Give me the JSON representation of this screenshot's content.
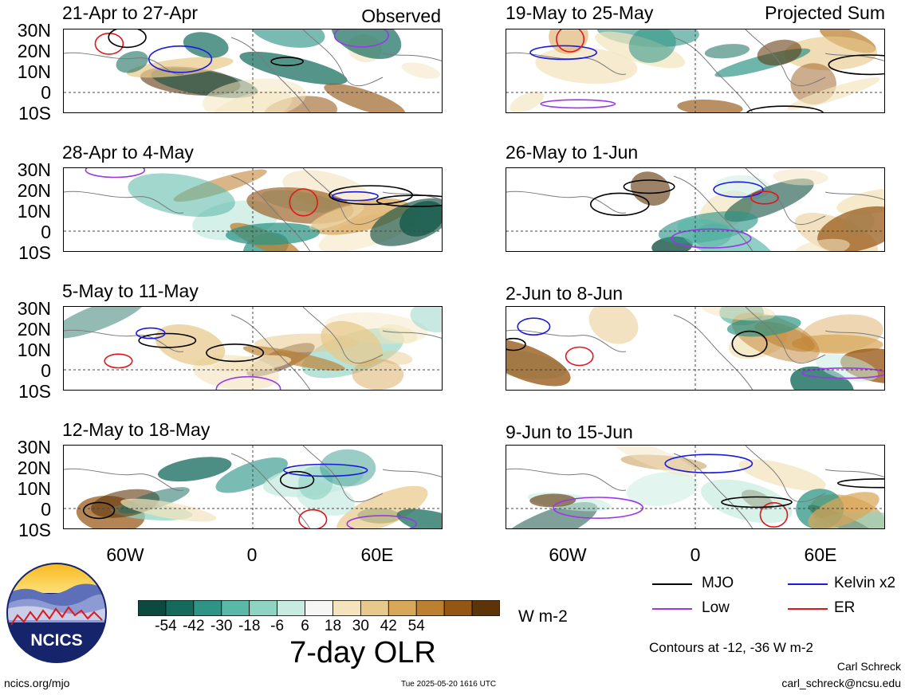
{
  "panels": [
    {
      "id": "p1",
      "title": "21-Apr to 27-Apr",
      "tag": "Observed"
    },
    {
      "id": "p2",
      "title": "28-Apr to 4-May",
      "tag": ""
    },
    {
      "id": "p3",
      "title": "5-May to 11-May",
      "tag": ""
    },
    {
      "id": "p4",
      "title": "12-May to 18-May",
      "tag": ""
    },
    {
      "id": "p5",
      "title": "19-May to 25-May",
      "tag": "Projected Sum"
    },
    {
      "id": "p6",
      "title": "26-May to 1-Jun",
      "tag": ""
    },
    {
      "id": "p7",
      "title": "2-Jun to 8-Jun",
      "tag": ""
    },
    {
      "id": "p8",
      "title": "9-Jun to 15-Jun",
      "tag": ""
    }
  ],
  "lat_labels": [
    "30N",
    "20N",
    "10N",
    "0",
    "10S"
  ],
  "lon_labels": [
    "60W",
    "0",
    "60E"
  ],
  "colorbar": {
    "title": "7-day OLR",
    "units": "W m-2",
    "labels": [
      "-54",
      "-42",
      "-30",
      "-18",
      "-6",
      "6",
      "18",
      "30",
      "42",
      "54"
    ],
    "colors": [
      "#0b4a3c",
      "#146b5c",
      "#2d9486",
      "#5ab8a8",
      "#8fd3c3",
      "#c7ebe0",
      "#f6f6f4",
      "#f3e4bd",
      "#e8c98c",
      "#d9a75a",
      "#bd8030",
      "#955614",
      "#5d3408"
    ]
  },
  "legend": {
    "items": [
      {
        "label": "MJO",
        "color": "#000000"
      },
      {
        "label": "Kelvin x2",
        "color": "#1a1ae0"
      },
      {
        "label": "Low",
        "color": "#9a38e6"
      },
      {
        "label": "ER",
        "color": "#e0161a"
      }
    ],
    "contours_note": "Contours at -12, -36 W m-2"
  },
  "logo": {
    "text": "NCICS"
  },
  "footer": {
    "left": "ncics.org/mjo",
    "center": "Tue 2025-05-20 1616 UTC",
    "author": "Carl Schreck",
    "email": "carl_schreck@ncsu.edu"
  }
}
